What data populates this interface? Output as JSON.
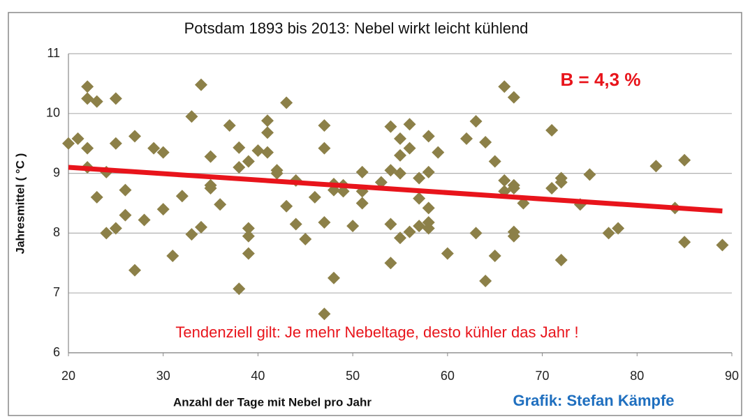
{
  "chart_data": {
    "type": "scatter",
    "title": "Potsdam 1893 bis 2013: Nebel wirkt leicht kühlend",
    "x_label": "Anzahl der Tage mit Nebel pro Jahr",
    "y_label": "Jahresmittel ( °C )",
    "annotations": [
      "B = 4,3 %",
      "Tendenziell gilt: Je mehr Nebeltage, desto kühler das Jahr !",
      "Grafik: Stefan Kämpfe"
    ],
    "xlim": [
      20,
      90
    ],
    "xticks": [
      20,
      30,
      40,
      50,
      60,
      70,
      80,
      90
    ],
    "ylim": [
      6,
      11
    ],
    "yticks": [
      6,
      7,
      8,
      9,
      10,
      11
    ],
    "grid": true,
    "color": "#8c8048",
    "x": [
      20,
      21,
      22,
      22,
      23,
      22,
      22,
      24,
      23,
      24,
      25,
      25,
      25,
      26,
      26,
      27,
      27,
      28,
      29,
      30,
      30,
      31,
      32,
      33,
      33,
      34,
      34,
      35,
      35,
      35,
      36,
      37,
      38,
      38,
      38,
      39,
      39,
      39,
      39,
      40,
      41,
      41,
      41,
      42,
      42,
      43,
      43,
      44,
      44,
      45,
      46,
      47,
      47,
      47,
      47,
      48,
      48,
      48,
      49,
      49,
      50,
      51,
      51,
      51,
      53,
      54,
      54,
      54,
      54,
      55,
      55,
      55,
      55,
      56,
      56,
      56,
      57,
      57,
      57,
      58,
      58,
      58,
      58,
      58,
      59,
      60,
      62,
      63,
      63,
      64,
      64,
      65,
      65,
      66,
      66,
      66,
      67,
      67,
      67,
      67,
      67,
      68,
      71,
      71,
      72,
      72,
      72,
      74,
      75,
      77,
      78,
      82,
      84,
      85,
      85,
      89
    ],
    "y": [
      9.5,
      9.58,
      10.45,
      10.25,
      10.2,
      9.42,
      9.1,
      9.02,
      8.6,
      8.0,
      8.08,
      9.5,
      10.25,
      8.72,
      8.3,
      9.62,
      7.38,
      8.22,
      9.42,
      9.35,
      8.4,
      7.62,
      8.62,
      9.95,
      7.98,
      10.48,
      8.1,
      9.28,
      8.8,
      8.75,
      8.48,
      9.8,
      9.43,
      9.1,
      7.07,
      9.2,
      8.08,
      7.95,
      7.66,
      9.38,
      9.88,
      9.68,
      9.35,
      9.05,
      9.0,
      10.18,
      8.45,
      8.88,
      8.15,
      7.9,
      8.6,
      9.8,
      9.42,
      8.18,
      6.65,
      8.82,
      8.72,
      7.25,
      8.7,
      8.8,
      8.12,
      9.02,
      8.5,
      8.7,
      8.85,
      9.78,
      9.05,
      8.15,
      7.5,
      9.58,
      9.3,
      9.0,
      7.92,
      9.82,
      9.42,
      8.02,
      8.92,
      8.58,
      8.12,
      9.62,
      9.02,
      8.42,
      8.18,
      8.08,
      9.35,
      7.66,
      9.58,
      9.87,
      8.0,
      9.52,
      7.2,
      9.2,
      7.62,
      10.45,
      8.88,
      8.7,
      10.27,
      8.8,
      8.75,
      8.02,
      7.95,
      8.5,
      9.72,
      8.75,
      8.92,
      8.85,
      7.55,
      8.48,
      8.98,
      8.0,
      8.08,
      9.12,
      8.42,
      9.22,
      7.85,
      7.8
    ],
    "trend": {
      "color": "#e8141b",
      "x": [
        20,
        89
      ],
      "y": [
        9.1,
        8.37
      ]
    }
  }
}
